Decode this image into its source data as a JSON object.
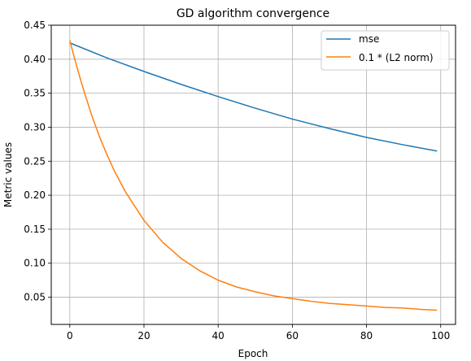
{
  "chart_data": {
    "type": "line",
    "title": "GD algorithm convergence",
    "xlabel": "Epoch",
    "ylabel": "Metric values",
    "xlim": [
      -5,
      104
    ],
    "ylim": [
      0.01,
      0.45
    ],
    "xticks": [
      0,
      20,
      40,
      60,
      80,
      100
    ],
    "yticks": [
      0.05,
      0.1,
      0.15,
      0.2,
      0.25,
      0.3,
      0.35,
      0.4,
      0.45
    ],
    "ytick_labels": [
      "0.05",
      "0.10",
      "0.15",
      "0.20",
      "0.25",
      "0.30",
      "0.35",
      "0.40",
      "0.45"
    ],
    "grid": true,
    "legend_position": "top-right",
    "series": [
      {
        "name": "mse",
        "color": "#1f77b4",
        "x": [
          0,
          10,
          20,
          30,
          40,
          50,
          60,
          70,
          80,
          90,
          99
        ],
        "values": [
          0.424,
          0.402,
          0.382,
          0.363,
          0.345,
          0.328,
          0.312,
          0.298,
          0.285,
          0.274,
          0.265
        ]
      },
      {
        "name": "0.1 * (L2 norm)",
        "color": "#ff7f0e",
        "x": [
          0,
          1,
          2,
          3,
          4,
          5,
          6,
          8,
          10,
          12,
          15,
          20,
          25,
          30,
          35,
          40,
          45,
          50,
          55,
          60,
          65,
          70,
          75,
          80,
          85,
          90,
          95,
          99
        ],
        "values": [
          0.428,
          0.407,
          0.387,
          0.368,
          0.35,
          0.333,
          0.316,
          0.286,
          0.26,
          0.236,
          0.205,
          0.163,
          0.131,
          0.107,
          0.089,
          0.075,
          0.065,
          0.058,
          0.052,
          0.048,
          0.044,
          0.041,
          0.039,
          0.037,
          0.035,
          0.034,
          0.032,
          0.031
        ]
      }
    ]
  }
}
